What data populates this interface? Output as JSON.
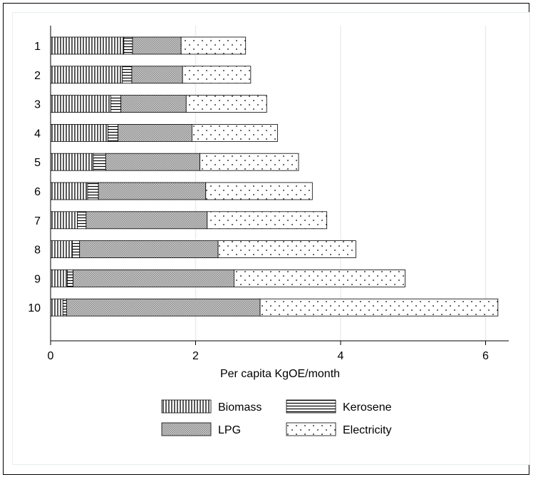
{
  "chart_data": {
    "type": "bar",
    "orientation": "horizontal",
    "stacked": true,
    "categories": [
      "1",
      "2",
      "3",
      "4",
      "5",
      "6",
      "7",
      "8",
      "9",
      "10"
    ],
    "series": [
      {
        "name": "Biomass",
        "pattern": "vertical-lines",
        "values": [
          1.01,
          0.99,
          0.83,
          0.79,
          0.59,
          0.51,
          0.37,
          0.3,
          0.23,
          0.17
        ]
      },
      {
        "name": "Kerosene",
        "pattern": "horizontal-lines",
        "values": [
          0.12,
          0.13,
          0.14,
          0.14,
          0.17,
          0.15,
          0.12,
          0.1,
          0.08,
          0.05
        ]
      },
      {
        "name": "LPG",
        "pattern": "cross-hatch",
        "values": [
          0.67,
          0.7,
          0.9,
          1.02,
          1.3,
          1.48,
          1.67,
          1.91,
          2.22,
          2.67
        ]
      },
      {
        "name": "Electricity",
        "pattern": "dots",
        "values": [
          0.89,
          0.94,
          1.11,
          1.18,
          1.36,
          1.47,
          1.65,
          1.9,
          2.36,
          3.28
        ]
      }
    ],
    "xlabel": "Per capita KgOE/month",
    "ylabel": "",
    "xlim": [
      0,
      6.3
    ],
    "xticks": [
      "0",
      "2",
      "4",
      "6"
    ],
    "grid": true,
    "legend_position": "bottom",
    "colors": {
      "fill": "#ffffff",
      "stroke": "#000000",
      "grid": "#e8eef0",
      "frame": "#000000"
    }
  }
}
